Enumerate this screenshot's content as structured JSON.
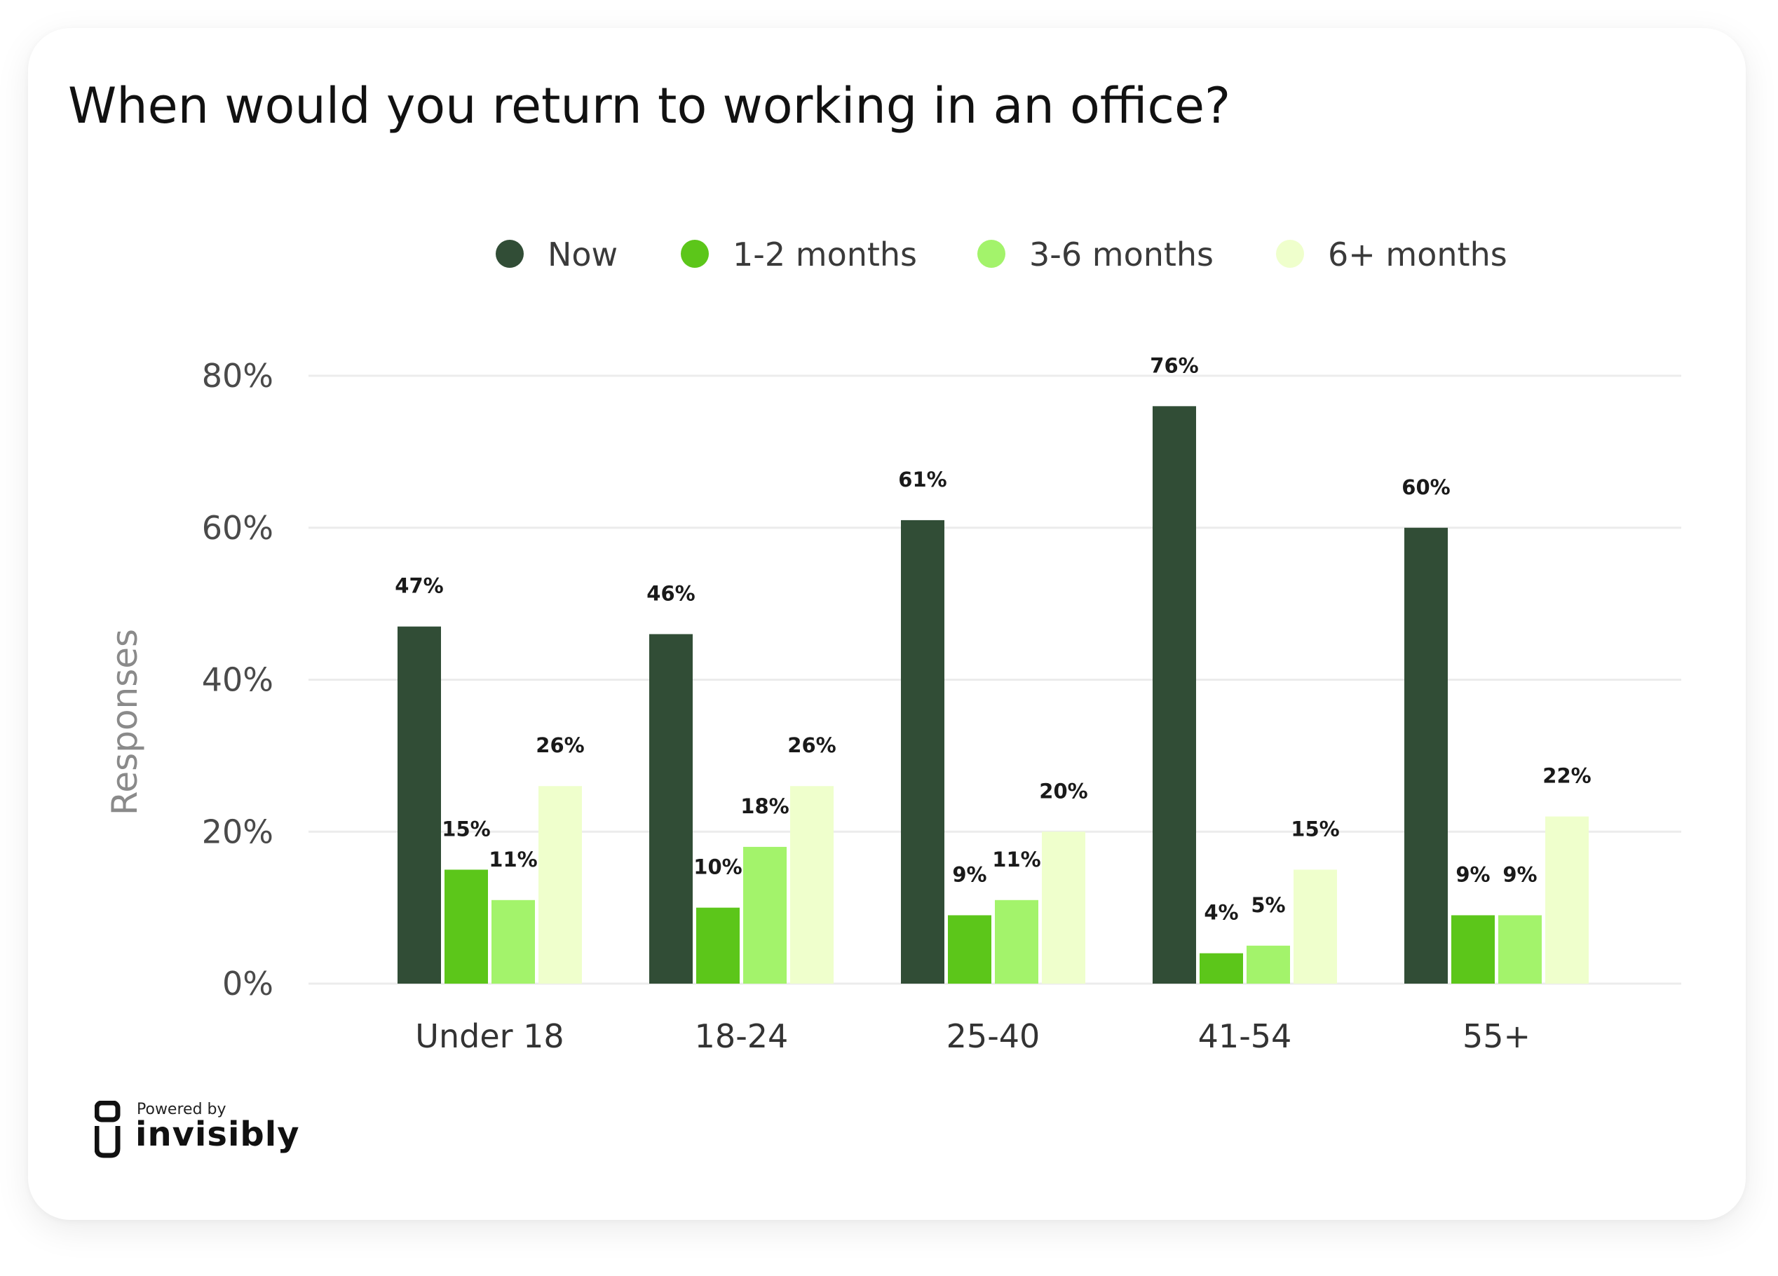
{
  "chart_data": {
    "type": "bar",
    "title": "When would you return to working in an office?",
    "ylabel": "Responses",
    "xlabel": "",
    "ylim": [
      0,
      80
    ],
    "yticks": [
      "0%",
      "20%",
      "40%",
      "60%",
      "80%"
    ],
    "categories": [
      "Under 18",
      "18-24",
      "25-40",
      "41-54",
      "55+"
    ],
    "series": [
      {
        "name": "Now",
        "color": "#314d36",
        "values": [
          47,
          46,
          61,
          76,
          60
        ]
      },
      {
        "name": "1-2 months",
        "color": "#5cc61a",
        "values": [
          15,
          10,
          9,
          4,
          9
        ]
      },
      {
        "name": "3-6 months",
        "color": "#a3f36b",
        "values": [
          11,
          18,
          11,
          5,
          9
        ]
      },
      {
        "name": "6+ months",
        "color": "#efffcc",
        "values": [
          26,
          26,
          20,
          15,
          22
        ]
      }
    ],
    "grid": true,
    "legend": "top"
  },
  "footer": {
    "powered_by": "Powered by",
    "brand": "invisibly"
  }
}
